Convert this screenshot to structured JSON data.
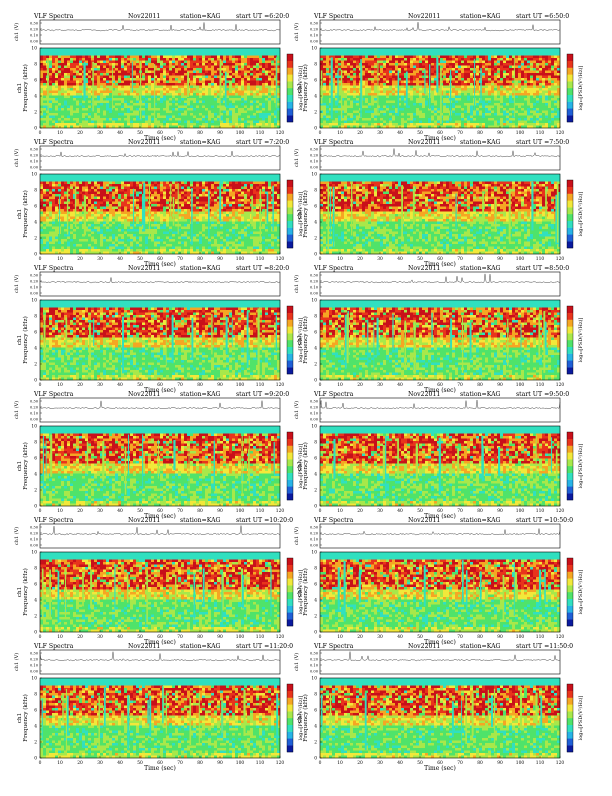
{
  "panel_title": "VLF Spectra",
  "date": "Nov22011",
  "station": "station=KAG",
  "start_label": "start UT =",
  "upper_ylabel": "ch1 (V)",
  "spec_ylabel": "ch1\nFrequency (kHz)",
  "xlabel": "Time (sec)",
  "colorbar_label": "log₁₀[PSD(V²/Hz)]",
  "colors": {
    "spectrum_palette": [
      "#0a1a9e",
      "#1f5fd6",
      "#27b3e6",
      "#30e0c0",
      "#4fe36a",
      "#a8e84a",
      "#f2e83a",
      "#f5a623",
      "#e8341c",
      "#c8101a"
    ],
    "trace": "#333333",
    "axes": "#000000"
  },
  "chart_data": [
    {
      "type": "heatmap",
      "panel": 1,
      "start_ut": "6:20:0",
      "xlim": [
        0,
        120
      ],
      "xticks": [
        0,
        10,
        20,
        30,
        40,
        50,
        60,
        70,
        80,
        90,
        100,
        110,
        120
      ],
      "ylim_khz": [
        0,
        10
      ],
      "yticks_khz": [
        0,
        2,
        4,
        6,
        8,
        10
      ],
      "upper_yticks": [
        "0.30",
        "0.20",
        "0.10",
        "0.00"
      ],
      "grid": false
    },
    {
      "type": "heatmap",
      "panel": 2,
      "start_ut": "6:50:0",
      "xlim": [
        0,
        120
      ],
      "xticks": [
        0,
        10,
        20,
        30,
        40,
        50,
        60,
        70,
        80,
        90,
        100,
        110,
        120
      ],
      "ylim_khz": [
        0,
        10
      ],
      "yticks_khz": [
        0,
        2,
        4,
        6,
        8,
        10
      ],
      "upper_yticks": [
        "0.30",
        "0.20",
        "0.10",
        "0.00"
      ],
      "grid": false
    },
    {
      "type": "heatmap",
      "panel": 3,
      "start_ut": "7:20:0",
      "xlim": [
        0,
        120
      ],
      "xticks": [
        0,
        10,
        20,
        30,
        40,
        50,
        60,
        70,
        80,
        90,
        100,
        110,
        120
      ],
      "ylim_khz": [
        0,
        10
      ],
      "yticks_khz": [
        0,
        2,
        4,
        6,
        8,
        10
      ],
      "upper_yticks": [
        "0.30",
        "0.20",
        "0.10",
        "0.00"
      ],
      "grid": false
    },
    {
      "type": "heatmap",
      "panel": 4,
      "start_ut": "7:50:0",
      "xlim": [
        0,
        120
      ],
      "xticks": [
        0,
        10,
        20,
        30,
        40,
        50,
        60,
        70,
        80,
        90,
        100,
        110,
        120
      ],
      "ylim_khz": [
        0,
        10
      ],
      "yticks_khz": [
        0,
        2,
        4,
        6,
        8,
        10
      ],
      "upper_yticks": [
        "0.30",
        "0.20",
        "0.10",
        "0.00"
      ],
      "grid": false
    },
    {
      "type": "heatmap",
      "panel": 5,
      "start_ut": "8:20:0",
      "xlim": [
        0,
        120
      ],
      "xticks": [
        0,
        10,
        20,
        30,
        40,
        50,
        60,
        70,
        80,
        90,
        100,
        110,
        120
      ],
      "ylim_khz": [
        0,
        10
      ],
      "yticks_khz": [
        0,
        2,
        4,
        6,
        8,
        10
      ],
      "upper_yticks": [
        "0.30",
        "0.20",
        "0.10",
        "0.00"
      ],
      "grid": false
    },
    {
      "type": "heatmap",
      "panel": 6,
      "start_ut": "8:50:0",
      "xlim": [
        0,
        120
      ],
      "xticks": [
        0,
        10,
        20,
        30,
        40,
        50,
        60,
        70,
        80,
        90,
        100,
        110,
        120
      ],
      "ylim_khz": [
        0,
        10
      ],
      "yticks_khz": [
        0,
        2,
        4,
        6,
        8,
        10
      ],
      "upper_yticks": [
        "0.30",
        "0.20",
        "0.10",
        "0.00"
      ],
      "grid": false
    },
    {
      "type": "heatmap",
      "panel": 7,
      "start_ut": "9:20:0",
      "xlim": [
        0,
        120
      ],
      "xticks": [
        0,
        10,
        20,
        30,
        40,
        50,
        60,
        70,
        80,
        90,
        100,
        110,
        120
      ],
      "ylim_khz": [
        0,
        10
      ],
      "yticks_khz": [
        0,
        2,
        4,
        6,
        8,
        10
      ],
      "upper_yticks": [
        "0.30",
        "0.20",
        "0.10",
        "0.00"
      ],
      "grid": false
    },
    {
      "type": "heatmap",
      "panel": 8,
      "start_ut": "9:50:0",
      "xlim": [
        0,
        120
      ],
      "xticks": [
        0,
        10,
        20,
        30,
        40,
        50,
        60,
        70,
        80,
        90,
        100,
        110,
        120
      ],
      "ylim_khz": [
        0,
        10
      ],
      "yticks_khz": [
        0,
        2,
        4,
        6,
        8,
        10
      ],
      "upper_yticks": [
        "0.30",
        "0.20",
        "0.10",
        "0.00"
      ],
      "grid": false
    },
    {
      "type": "heatmap",
      "panel": 9,
      "start_ut": "10:20:0",
      "xlim": [
        0,
        120
      ],
      "xticks": [
        0,
        10,
        20,
        30,
        40,
        50,
        60,
        70,
        80,
        90,
        100,
        110,
        120
      ],
      "ylim_khz": [
        0,
        10
      ],
      "yticks_khz": [
        0,
        2,
        4,
        6,
        8,
        10
      ],
      "upper_yticks": [
        "0.30",
        "0.20",
        "0.10",
        "0.00"
      ],
      "grid": false
    },
    {
      "type": "heatmap",
      "panel": 10,
      "start_ut": "10:50:0",
      "xlim": [
        0,
        120
      ],
      "xticks": [
        0,
        10,
        20,
        30,
        40,
        50,
        60,
        70,
        80,
        90,
        100,
        110,
        120
      ],
      "ylim_khz": [
        0,
        10
      ],
      "yticks_khz": [
        0,
        2,
        4,
        6,
        8,
        10
      ],
      "upper_yticks": [
        "0.30",
        "0.20",
        "0.10",
        "0.00"
      ],
      "grid": false
    },
    {
      "type": "heatmap",
      "panel": 11,
      "start_ut": "11:20:0",
      "xlim": [
        0,
        120
      ],
      "xticks": [
        0,
        10,
        20,
        30,
        40,
        50,
        60,
        70,
        80,
        90,
        100,
        110,
        120
      ],
      "ylim_khz": [
        0,
        10
      ],
      "yticks_khz": [
        0,
        2,
        4,
        6,
        8,
        10
      ],
      "upper_yticks": [
        "0.30",
        "0.20",
        "0.10",
        "0.00"
      ],
      "grid": false
    },
    {
      "type": "heatmap",
      "panel": 12,
      "start_ut": "11:50:0",
      "xlim": [
        0,
        120
      ],
      "xticks": [
        0,
        10,
        20,
        30,
        40,
        50,
        60,
        70,
        80,
        90,
        100,
        110,
        120
      ],
      "ylim_khz": [
        0,
        10
      ],
      "yticks_khz": [
        0,
        2,
        4,
        6,
        8,
        10
      ],
      "upper_yticks": [
        "0.30",
        "0.20",
        "0.10",
        "0.00"
      ],
      "grid": false
    }
  ]
}
